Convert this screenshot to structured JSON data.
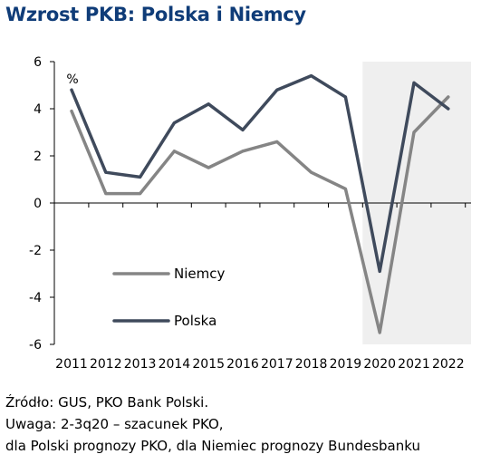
{
  "title": "Wzrost PKB: Polska i Niemcy",
  "chart_data": {
    "type": "line",
    "categories": [
      "2011",
      "2012",
      "2013",
      "2014",
      "2015",
      "2016",
      "2017",
      "2018",
      "2019",
      "2020",
      "2021",
      "2022"
    ],
    "unit_label": "%",
    "ylim": [
      -6,
      6
    ],
    "yticks": [
      6,
      4,
      2,
      0,
      -2,
      -4,
      -6
    ],
    "grid": false,
    "shaded_forecast_from": "2020",
    "legend_position": "lower-left",
    "series": [
      {
        "name": "Niemcy",
        "color": "#858585",
        "values": [
          3.9,
          0.4,
          0.4,
          2.2,
          1.5,
          2.2,
          2.6,
          1.3,
          0.6,
          -5.5,
          3.0,
          4.5
        ]
      },
      {
        "name": "Polska",
        "color": "#3f4a5c",
        "values": [
          4.8,
          1.3,
          1.1,
          3.4,
          4.2,
          3.1,
          4.8,
          5.4,
          4.5,
          -2.9,
          5.1,
          4.0
        ]
      }
    ]
  },
  "footer": {
    "source": "Źródło: GUS, PKO Bank Polski.",
    "note": "Uwaga: 2-3q20 – szacunek PKO,",
    "note2": "dla Polski prognozy PKO, dla Niemiec prognozy Bundesbanku"
  }
}
